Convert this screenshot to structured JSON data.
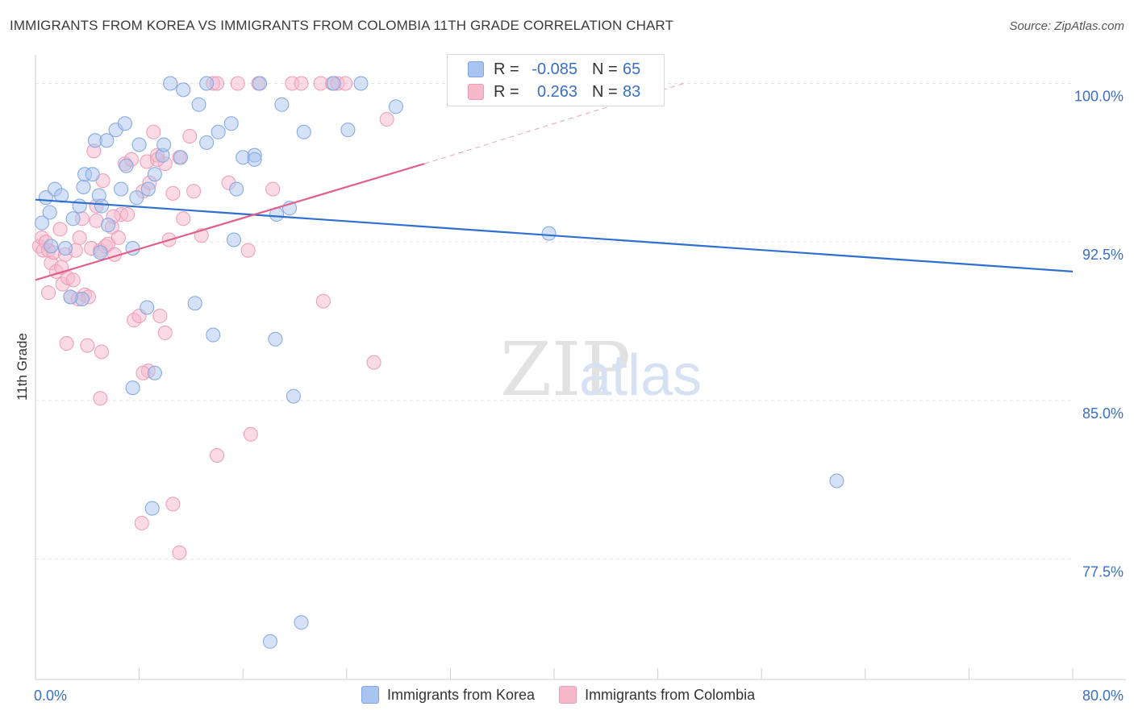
{
  "header": {
    "title": "IMMIGRANTS FROM KOREA VS IMMIGRANTS FROM COLOMBIA 11TH GRADE CORRELATION CHART",
    "source": "Source: ZipAtlas.com"
  },
  "watermark": {
    "zip": "ZIP",
    "atlas": "atlas"
  },
  "legend_top": {
    "korea": {
      "r_label": "R =",
      "r_value": "-0.085",
      "n_label": "N =",
      "n_value": "65"
    },
    "colombia": {
      "r_label": "R =",
      "r_value": "0.263",
      "n_label": "N =",
      "n_value": "83"
    }
  },
  "legend_bottom": {
    "korea": "Immigrants from Korea",
    "colombia": "Immigrants from Colombia"
  },
  "colors": {
    "korea_fill": "#a9c4ee",
    "korea_stroke": "#7fa6e2",
    "korea_line": "#2f6fcf",
    "colombia_fill": "#f6b8cb",
    "colombia_stroke": "#ef9ab5",
    "colombia_line": "#e0608a",
    "tick_label": "#3a6fc4",
    "grid": "#e3e3e3"
  },
  "chart_data": {
    "type": "scatter",
    "title": "IMMIGRANTS FROM KOREA VS IMMIGRANTS FROM COLOMBIA 11TH GRADE CORRELATION CHART",
    "xlabel": "",
    "ylabel": "11th Grade",
    "xlim": [
      0,
      80
    ],
    "ylim": [
      71.8,
      101.2
    ],
    "x_tick_labels": [
      "0.0%",
      "80.0%"
    ],
    "y_ticks": [
      77.5,
      85.0,
      92.5,
      100.0
    ],
    "y_tick_labels": [
      "77.5%",
      "85.0%",
      "92.5%",
      "100.0%"
    ],
    "series": [
      {
        "name": "Immigrants from Korea",
        "R": -0.085,
        "N": 65,
        "trend": {
          "x": [
            0,
            80
          ],
          "y": [
            94.5,
            91.1
          ]
        },
        "points": [
          [
            0.5,
            93.4
          ],
          [
            0.8,
            94.6
          ],
          [
            1.1,
            93.9
          ],
          [
            1.5,
            95.0
          ],
          [
            1.2,
            92.3
          ],
          [
            2.0,
            94.7
          ],
          [
            2.3,
            92.2
          ],
          [
            2.9,
            93.6
          ],
          [
            3.4,
            94.2
          ],
          [
            3.7,
            95.1
          ],
          [
            3.8,
            95.7
          ],
          [
            4.4,
            95.7
          ],
          [
            4.6,
            97.3
          ],
          [
            4.9,
            94.7
          ],
          [
            5.1,
            94.2
          ],
          [
            5.5,
            97.3
          ],
          [
            5.6,
            93.3
          ],
          [
            6.2,
            97.8
          ],
          [
            6.6,
            95.0
          ],
          [
            6.9,
            98.1
          ],
          [
            7.0,
            96.1
          ],
          [
            7.5,
            92.2
          ],
          [
            7.8,
            94.6
          ],
          [
            8.0,
            97.1
          ],
          [
            8.7,
            95.0
          ],
          [
            9.2,
            95.7
          ],
          [
            9.8,
            96.6
          ],
          [
            9.9,
            97.1
          ],
          [
            10.4,
            100.0
          ],
          [
            11.2,
            96.5
          ],
          [
            11.4,
            99.7
          ],
          [
            12.6,
            99.0
          ],
          [
            13.2,
            97.2
          ],
          [
            13.2,
            100.0
          ],
          [
            14.1,
            97.7
          ],
          [
            15.1,
            98.1
          ],
          [
            16.0,
            96.5
          ],
          [
            16.9,
            96.6
          ],
          [
            16.9,
            96.4
          ],
          [
            17.3,
            100.0
          ],
          [
            15.5,
            95.0
          ],
          [
            15.3,
            92.6
          ],
          [
            19.0,
            99.0
          ],
          [
            18.6,
            93.8
          ],
          [
            19.6,
            94.1
          ],
          [
            20.7,
            97.7
          ],
          [
            23.0,
            100.0
          ],
          [
            24.1,
            97.8
          ],
          [
            25.1,
            100.0
          ],
          [
            27.8,
            98.9
          ],
          [
            3.6,
            89.8
          ],
          [
            8.6,
            89.4
          ],
          [
            12.3,
            89.6
          ],
          [
            13.7,
            88.1
          ],
          [
            18.5,
            87.9
          ],
          [
            9.2,
            86.3
          ],
          [
            7.5,
            85.6
          ],
          [
            19.9,
            85.2
          ],
          [
            9.0,
            79.9
          ],
          [
            61.8,
            81.2
          ],
          [
            20.5,
            74.5
          ],
          [
            18.1,
            73.6
          ],
          [
            39.6,
            92.9
          ],
          [
            5.0,
            92.0
          ],
          [
            2.7,
            89.9
          ]
        ]
      },
      {
        "name": "Immigrants from Colombia",
        "R": 0.263,
        "N": 83,
        "trend": {
          "x": [
            0,
            30
          ],
          "y": [
            90.7,
            96.2
          ]
        },
        "trend_dashed": {
          "x": [
            30,
            50
          ],
          "y": [
            96.2,
            100.0
          ]
        },
        "points": [
          [
            0.3,
            92.3
          ],
          [
            0.5,
            92.7
          ],
          [
            0.6,
            92.1
          ],
          [
            0.8,
            92.5
          ],
          [
            1.0,
            92.1
          ],
          [
            1.2,
            91.5
          ],
          [
            1.4,
            92.0
          ],
          [
            1.6,
            91.1
          ],
          [
            1.9,
            93.1
          ],
          [
            2.1,
            90.5
          ],
          [
            2.3,
            91.9
          ],
          [
            2.5,
            90.8
          ],
          [
            2.7,
            89.9
          ],
          [
            2.9,
            90.7
          ],
          [
            3.1,
            92.1
          ],
          [
            3.4,
            92.7
          ],
          [
            3.6,
            93.6
          ],
          [
            3.8,
            90.0
          ],
          [
            4.1,
            89.9
          ],
          [
            4.3,
            92.2
          ],
          [
            4.5,
            96.8
          ],
          [
            4.7,
            93.5
          ],
          [
            5.0,
            92.1
          ],
          [
            5.2,
            95.4
          ],
          [
            5.4,
            92.3
          ],
          [
            5.6,
            92.4
          ],
          [
            5.9,
            93.2
          ],
          [
            6.1,
            91.9
          ],
          [
            6.4,
            92.7
          ],
          [
            6.6,
            93.8
          ],
          [
            6.9,
            96.2
          ],
          [
            7.1,
            93.8
          ],
          [
            7.4,
            96.4
          ],
          [
            7.6,
            88.8
          ],
          [
            8.0,
            89.0
          ],
          [
            8.3,
            94.9
          ],
          [
            8.6,
            96.3
          ],
          [
            8.8,
            95.3
          ],
          [
            9.1,
            97.7
          ],
          [
            9.4,
            96.6
          ],
          [
            9.6,
            89.0
          ],
          [
            10.0,
            96.2
          ],
          [
            10.3,
            92.6
          ],
          [
            10.6,
            94.8
          ],
          [
            11.1,
            96.5
          ],
          [
            11.4,
            93.6
          ],
          [
            11.9,
            97.5
          ],
          [
            12.2,
            94.9
          ],
          [
            12.8,
            92.8
          ],
          [
            13.7,
            100.0
          ],
          [
            14.0,
            100.0
          ],
          [
            14.9,
            95.3
          ],
          [
            15.6,
            100.0
          ],
          [
            16.4,
            92.1
          ],
          [
            17.2,
            100.0
          ],
          [
            18.3,
            95.0
          ],
          [
            19.8,
            100.0
          ],
          [
            20.5,
            100.0
          ],
          [
            22.0,
            100.0
          ],
          [
            22.9,
            100.0
          ],
          [
            23.3,
            100.0
          ],
          [
            23.9,
            100.0
          ],
          [
            27.1,
            98.3
          ],
          [
            22.2,
            89.7
          ],
          [
            26.1,
            86.8
          ],
          [
            4.0,
            87.6
          ],
          [
            2.4,
            87.7
          ],
          [
            5.1,
            87.3
          ],
          [
            1.0,
            90.1
          ],
          [
            8.7,
            86.4
          ],
          [
            8.3,
            86.3
          ],
          [
            10.0,
            88.2
          ],
          [
            5.0,
            85.1
          ],
          [
            16.6,
            83.4
          ],
          [
            14.0,
            82.4
          ],
          [
            10.6,
            80.1
          ],
          [
            8.2,
            79.2
          ],
          [
            11.1,
            77.8
          ],
          [
            3.3,
            89.8
          ],
          [
            9.4,
            96.4
          ],
          [
            4.7,
            94.2
          ],
          [
            6.0,
            93.7
          ],
          [
            2.0,
            91.3
          ]
        ]
      }
    ]
  }
}
